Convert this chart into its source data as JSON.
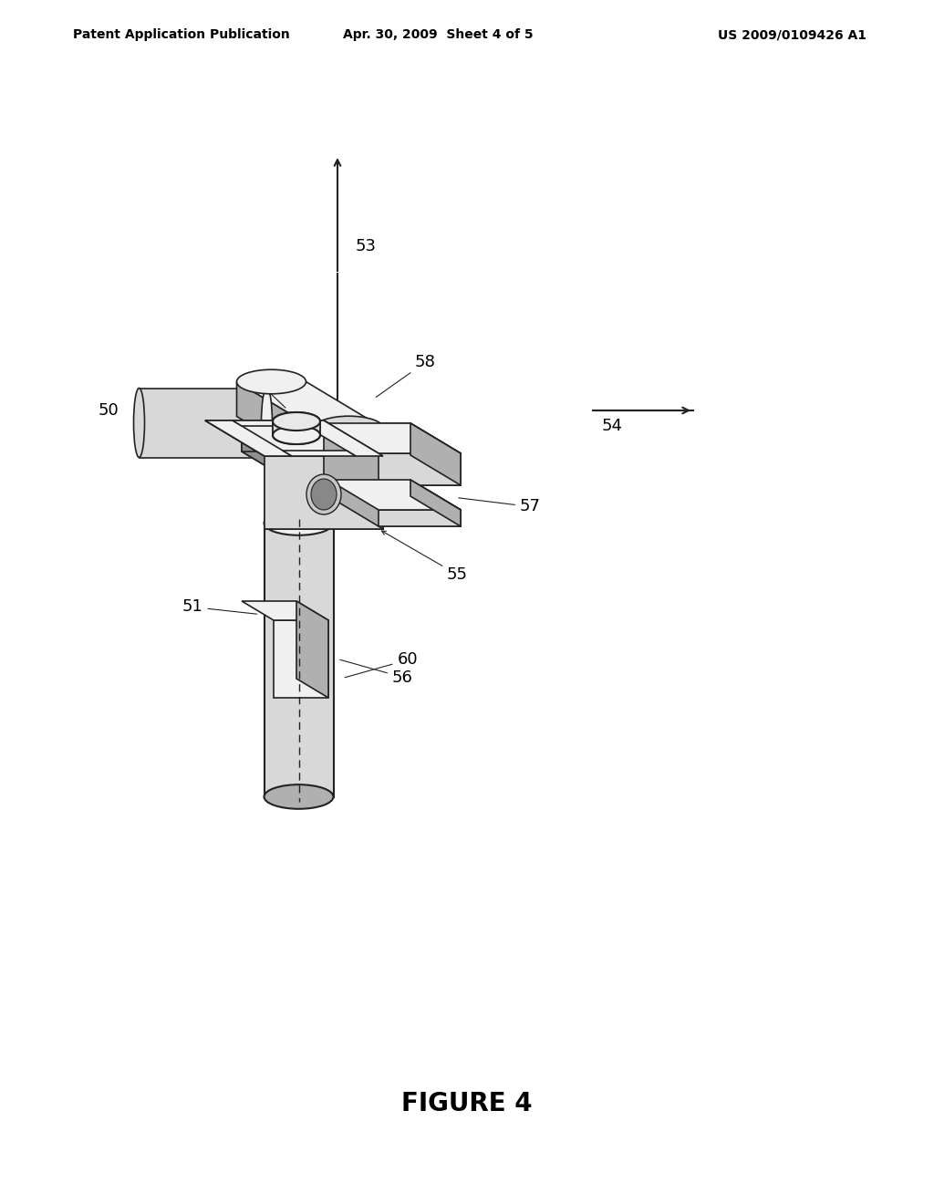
{
  "bg_color": "#ffffff",
  "header_left": "Patent Application Publication",
  "header_center": "Apr. 30, 2009  Sheet 4 of 5",
  "header_right": "US 2009/0109426 A1",
  "figure_label": "FIGURE 4",
  "line_color": "#222222",
  "face_light": "#f0f0f0",
  "face_mid": "#d8d8d8",
  "face_dark": "#b0b0b0",
  "face_darker": "#909090"
}
